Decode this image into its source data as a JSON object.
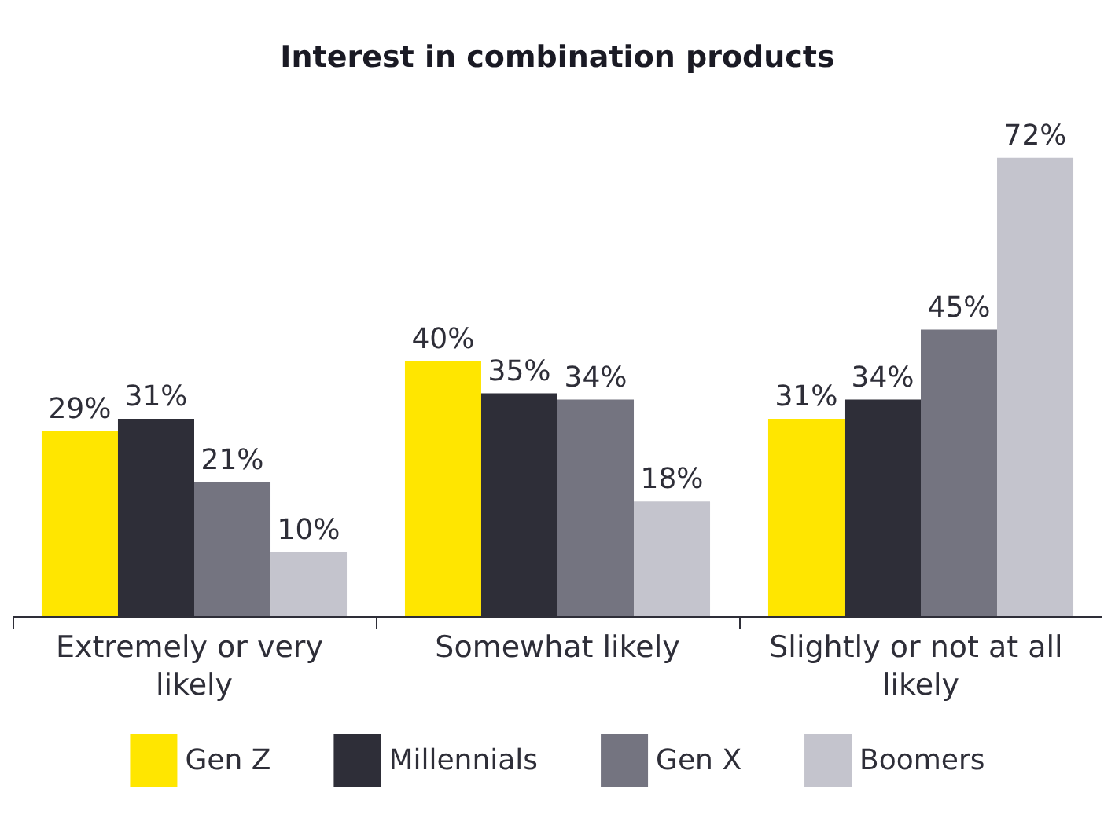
{
  "chart_data": {
    "type": "bar",
    "title": "Interest in combination products",
    "categories": [
      "Extremely or very likely",
      "Somewhat likely",
      "Slightly or not at all likely"
    ],
    "series": [
      {
        "name": "Gen Z",
        "color": "#ffe600",
        "values": [
          29,
          40,
          31
        ],
        "value_labels": [
          "29%",
          "40%",
          "31%"
        ]
      },
      {
        "name": "Millennials",
        "color": "#2e2e38",
        "values": [
          31,
          35,
          34
        ],
        "value_labels": [
          "31%",
          "35%",
          "34%"
        ]
      },
      {
        "name": "Gen X",
        "color": "#747480",
        "values": [
          21,
          34,
          45
        ],
        "value_labels": [
          "21%",
          "34%",
          "45%"
        ]
      },
      {
        "name": "Boomers",
        "color": "#c4c4cd",
        "values": [
          10,
          18,
          72
        ],
        "value_labels": [
          "10%",
          "18%",
          "72%"
        ]
      }
    ],
    "legend": "bottom",
    "grid": false
  }
}
